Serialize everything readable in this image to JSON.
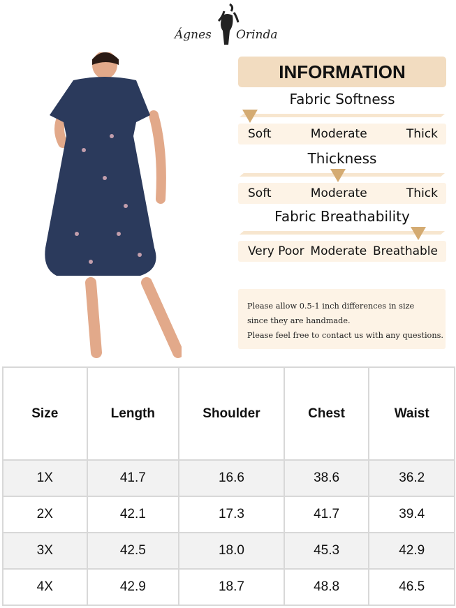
{
  "brand": {
    "logo_text_left": "Ágnes",
    "logo_text_right": "Orinda"
  },
  "info": {
    "title": "INFORMATION",
    "scales": [
      {
        "title": "Fabric Softness",
        "labels": [
          "Soft",
          "Moderate",
          "Thick"
        ],
        "level": 0.05
      },
      {
        "title": "Thickness",
        "labels": [
          "Soft",
          "Moderate",
          "Thick"
        ],
        "level": 0.48
      },
      {
        "title": "Fabric Breathability",
        "labels": [
          "Very Poor",
          "Moderate",
          "Breathable"
        ],
        "level": 0.87
      }
    ],
    "note": [
      "Please allow 0.5-1 inch differences in size",
      "since they are handmade.",
      "Please feel free to contact us with any questions."
    ],
    "accent_color": "#d4ab72"
  },
  "size_table": {
    "headers": [
      "Size",
      "Length",
      "Shoulder",
      "Chest",
      "Waist"
    ],
    "rows": [
      [
        "1X",
        "41.7",
        "16.6",
        "38.6",
        "36.2"
      ],
      [
        "2X",
        "42.1",
        "17.3",
        "41.7",
        "39.4"
      ],
      [
        "3X",
        "42.5",
        "18.0",
        "45.3",
        "42.9"
      ],
      [
        "4X",
        "42.9",
        "18.7",
        "48.8",
        "46.5"
      ]
    ]
  }
}
